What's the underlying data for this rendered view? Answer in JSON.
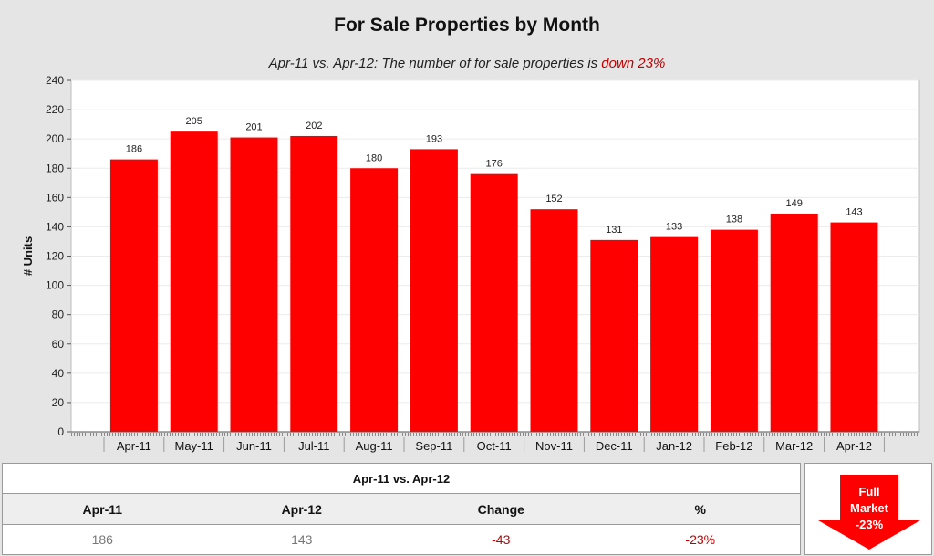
{
  "chart_data": {
    "type": "bar",
    "title": "For Sale Properties by Month",
    "subtitle_prefix": "Apr-11 vs. Apr-12: The number of for sale properties is ",
    "subtitle_highlight": "down 23%",
    "xlabel": "",
    "ylabel": "# Units",
    "ylim": [
      0,
      240
    ],
    "yticks": [
      0,
      20,
      40,
      60,
      80,
      100,
      120,
      140,
      160,
      180,
      200,
      220,
      240
    ],
    "grid": true,
    "categories": [
      "Apr-11",
      "May-11",
      "Jun-11",
      "Jul-11",
      "Aug-11",
      "Sep-11",
      "Oct-11",
      "Nov-11",
      "Dec-11",
      "Jan-12",
      "Feb-12",
      "Mar-12",
      "Apr-12"
    ],
    "values": [
      186,
      205,
      201,
      202,
      180,
      193,
      176,
      152,
      131,
      133,
      138,
      149,
      143
    ],
    "bar_color": "#ff0000"
  },
  "summary": {
    "heading": "Apr-11 vs. Apr-12",
    "columns": [
      "Apr-11",
      "Apr-12",
      "Change",
      "%"
    ],
    "values": [
      "186",
      "143",
      "-43",
      "-23%"
    ]
  },
  "market_badge": {
    "line1": "Full",
    "line2": "Market",
    "line3": "-23%",
    "color": "#ff0000"
  }
}
